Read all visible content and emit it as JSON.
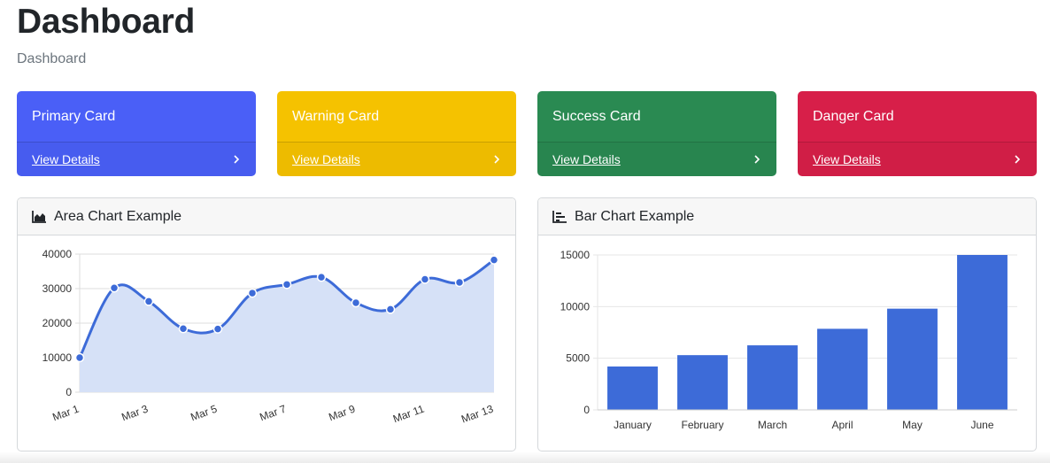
{
  "page": {
    "title": "Dashboard",
    "breadcrumb": "Dashboard"
  },
  "cards": [
    {
      "title": "Primary Card",
      "link": "View Details",
      "color": "#4a5ff7",
      "chevron_icon": "chevron-right-icon"
    },
    {
      "title": "Warning Card",
      "link": "View Details",
      "color": "#f5c200",
      "chevron_icon": "chevron-right-icon"
    },
    {
      "title": "Success Card",
      "link": "View Details",
      "color": "#2a8a52",
      "chevron_icon": "chevron-right-icon"
    },
    {
      "title": "Danger Card",
      "link": "View Details",
      "color": "#d71f49",
      "chevron_icon": "chevron-right-icon"
    }
  ],
  "panels": {
    "area": {
      "title": "Area Chart Example",
      "icon": "area-chart-icon"
    },
    "bar": {
      "title": "Bar Chart Example",
      "icon": "bar-chart-icon"
    }
  },
  "chart_data": [
    {
      "type": "area",
      "x": [
        "Mar 1",
        "Mar 2",
        "Mar 3",
        "Mar 4",
        "Mar 5",
        "Mar 6",
        "Mar 7",
        "Mar 8",
        "Mar 9",
        "Mar 10",
        "Mar 11",
        "Mar 12",
        "Mar 13"
      ],
      "tick_labels": [
        "Mar 1",
        "Mar 3",
        "Mar 5",
        "Mar 7",
        "Mar 9",
        "Mar 11",
        "Mar 13"
      ],
      "values": [
        10000,
        30200,
        26300,
        18400,
        18300,
        28700,
        31200,
        33300,
        25900,
        24000,
        32700,
        31800,
        38300
      ],
      "ylim": [
        0,
        40000
      ],
      "yticks": [
        0,
        10000,
        20000,
        30000,
        40000
      ],
      "line_color": "#3d6bd8",
      "fill_color": "#d6e1f7",
      "grid": true,
      "title": "",
      "xlabel": "",
      "ylabel": ""
    },
    {
      "type": "bar",
      "categories": [
        "January",
        "February",
        "March",
        "April",
        "May",
        "June"
      ],
      "values": [
        4200,
        5300,
        6250,
        7850,
        9800,
        15000
      ],
      "ylim": [
        0,
        15000
      ],
      "yticks": [
        0,
        5000,
        10000,
        15000
      ],
      "color": "#3d6bd8",
      "grid": true,
      "title": "",
      "xlabel": "",
      "ylabel": ""
    }
  ]
}
